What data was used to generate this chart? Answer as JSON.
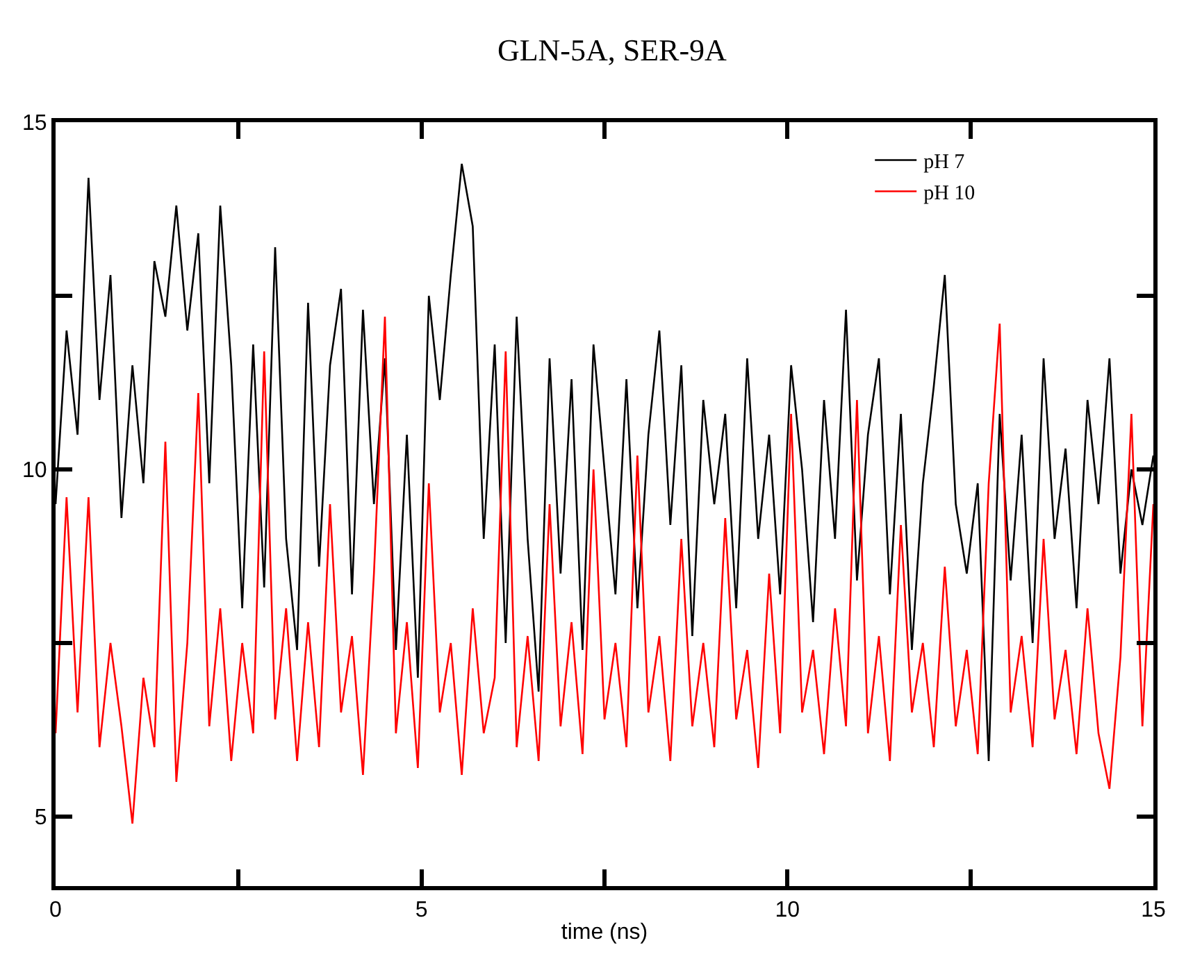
{
  "chart_data": {
    "type": "line",
    "title": "GLN-5A, SER-9A",
    "xlabel": "time (ns)",
    "x": [
      0,
      0.15,
      0.3,
      0.45,
      0.6,
      0.75,
      0.9,
      1.05,
      1.2,
      1.35,
      1.5,
      1.65,
      1.8,
      1.95,
      2.1,
      2.25,
      2.4,
      2.55,
      2.7,
      2.85,
      3.0,
      3.15,
      3.3,
      3.45,
      3.6,
      3.75,
      3.9,
      4.05,
      4.2,
      4.35,
      4.5,
      4.65,
      4.8,
      4.95,
      5.1,
      5.25,
      5.4,
      5.55,
      5.7,
      5.85,
      6.0,
      6.15,
      6.3,
      6.45,
      6.6,
      6.75,
      6.9,
      7.05,
      7.2,
      7.35,
      7.5,
      7.65,
      7.8,
      7.95,
      8.1,
      8.25,
      8.4,
      8.55,
      8.7,
      8.85,
      9.0,
      9.15,
      9.3,
      9.45,
      9.6,
      9.75,
      9.9,
      10.05,
      10.2,
      10.35,
      10.5,
      10.65,
      10.8,
      10.95,
      11.1,
      11.25,
      11.4,
      11.55,
      11.7,
      11.85,
      12.0,
      12.15,
      12.3,
      12.45,
      12.6,
      12.75,
      12.9,
      13.05,
      13.2,
      13.35,
      13.5,
      13.65,
      13.8,
      13.95,
      14.1,
      14.25,
      14.4,
      14.55,
      14.7,
      14.85,
      15.0
    ],
    "series": [
      {
        "name": "pH 7",
        "color": "#000000",
        "values": [
          9.5,
          12.0,
          10.5,
          14.2,
          11.0,
          12.8,
          9.3,
          11.5,
          9.8,
          13.0,
          12.2,
          13.8,
          12.0,
          13.4,
          9.8,
          13.8,
          11.5,
          8.0,
          11.8,
          8.3,
          13.2,
          9.0,
          7.4,
          12.4,
          8.6,
          11.5,
          12.6,
          8.2,
          12.3,
          9.5,
          11.6,
          7.4,
          10.5,
          7.0,
          12.5,
          11.0,
          12.8,
          14.4,
          13.5,
          9.0,
          11.8,
          7.5,
          12.2,
          9.0,
          6.8,
          11.6,
          8.5,
          11.3,
          7.4,
          11.8,
          10.0,
          8.2,
          11.3,
          8.0,
          10.5,
          12.0,
          9.2,
          11.5,
          7.6,
          11.0,
          9.5,
          10.8,
          8.0,
          11.6,
          9.0,
          10.5,
          8.2,
          11.5,
          10.0,
          7.8,
          11.0,
          9.0,
          12.3,
          8.4,
          10.5,
          11.6,
          8.2,
          10.8,
          7.4,
          9.8,
          11.2,
          12.8,
          9.5,
          8.5,
          9.8,
          5.8,
          10.8,
          8.4,
          10.5,
          7.5,
          11.6,
          9.0,
          10.3,
          8.0,
          11.0,
          9.5,
          11.6,
          8.5,
          10.0,
          9.2,
          10.2
        ]
      },
      {
        "name": "pH 10",
        "color": "#ff0000",
        "values": [
          6.2,
          9.6,
          6.5,
          9.6,
          6.0,
          7.5,
          6.3,
          4.9,
          7.0,
          6.0,
          10.4,
          5.5,
          7.5,
          11.1,
          6.3,
          8.0,
          5.8,
          7.5,
          6.2,
          11.7,
          6.4,
          8.0,
          5.8,
          7.8,
          6.0,
          9.5,
          6.5,
          7.6,
          5.6,
          8.5,
          12.2,
          6.2,
          7.8,
          5.7,
          9.8,
          6.5,
          7.5,
          5.6,
          8.0,
          6.2,
          7.0,
          11.7,
          6.0,
          7.6,
          5.8,
          9.5,
          6.3,
          7.8,
          5.9,
          10.0,
          6.4,
          7.5,
          6.0,
          10.2,
          6.5,
          7.6,
          5.8,
          9.0,
          6.3,
          7.5,
          6.0,
          9.3,
          6.4,
          7.4,
          5.7,
          8.5,
          6.2,
          10.8,
          6.5,
          7.4,
          5.9,
          8.0,
          6.3,
          11.0,
          6.2,
          7.6,
          5.8,
          9.2,
          6.5,
          7.5,
          6.0,
          8.6,
          6.3,
          7.4,
          5.9,
          9.8,
          12.1,
          6.5,
          7.6,
          6.0,
          9.0,
          6.4,
          7.4,
          5.9,
          8.0,
          6.2,
          5.4,
          7.3,
          10.8,
          6.3,
          9.5
        ]
      }
    ],
    "xlim": [
      0,
      15
    ],
    "ylim": [
      4,
      15
    ],
    "xticks": [
      0,
      {
        "value": 2.5,
        "label": null
      },
      5,
      {
        "value": 7.5,
        "label": null
      },
      10,
      {
        "value": 12.5,
        "label": null
      },
      15
    ],
    "yticks": [
      5,
      {
        "value": 7.5,
        "label": null
      },
      10,
      {
        "value": 12.5,
        "label": null
      },
      15
    ],
    "grid": false,
    "legend": "top right",
    "marker": "none",
    "line_style": "solid"
  }
}
